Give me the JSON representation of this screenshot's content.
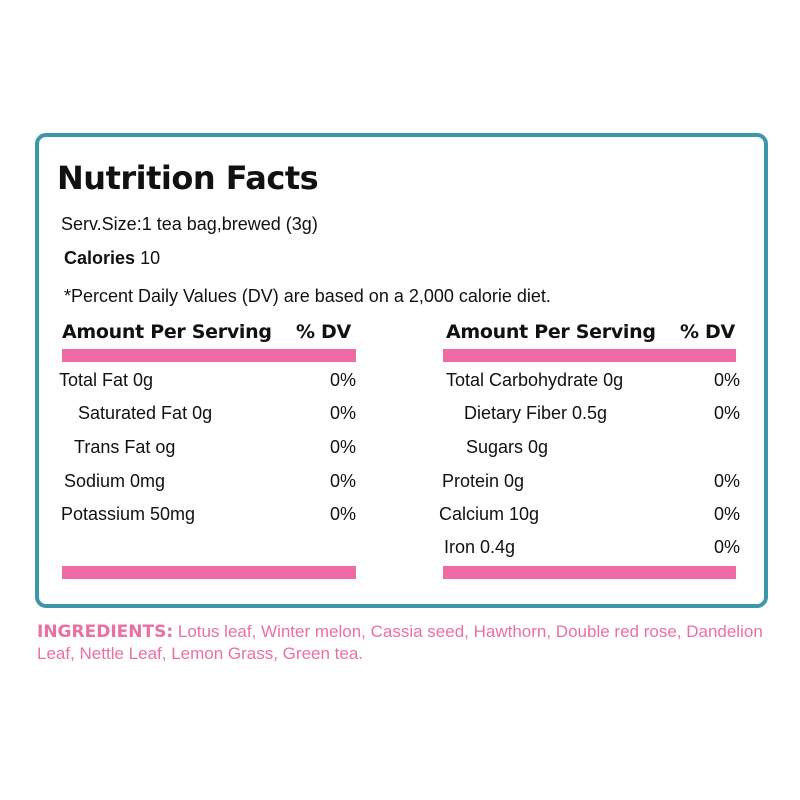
{
  "title": "Nutrition Facts",
  "serving_size": "Serv.Size:1 tea bag,brewed (3g)",
  "calories_label": "Calories",
  "calories_value": "10",
  "dv_note": "*Percent Daily Values (DV) are based on a 2,000 calorie diet.",
  "header": {
    "amount": "Amount Per Serving",
    "dv": "% DV"
  },
  "left": [
    {
      "name": "Total Fat 0g",
      "dv": "0%"
    },
    {
      "name": "Saturated Fat 0g",
      "dv": "0%"
    },
    {
      "name": "Trans Fat og",
      "dv": "0%"
    },
    {
      "name": "Sodium 0mg",
      "dv": "0%"
    },
    {
      "name": "Potassium 50mg",
      "dv": "0%"
    }
  ],
  "right": [
    {
      "name": "Total Carbohydrate 0g",
      "dv": "0%"
    },
    {
      "name": "Dietary Fiber 0.5g",
      "dv": "0%"
    },
    {
      "name": "Sugars 0g",
      "dv": ""
    },
    {
      "name": "Protein 0g",
      "dv": "0%"
    },
    {
      "name": "Calcium 10g",
      "dv": "0%"
    },
    {
      "name": "Iron 0.4g",
      "dv": "0%"
    }
  ],
  "ingredients_label": "INGREDIENTS:",
  "ingredients": "Lotus leaf, Winter melon, Cassia seed, Hawthorn, Double red rose, Dandelion Leaf, Nettle Leaf, Lemon Grass, Green tea.",
  "colors": {
    "border": "#3d97ab",
    "accent": "#f06aa3",
    "ingredients": "#ec6fa4"
  }
}
